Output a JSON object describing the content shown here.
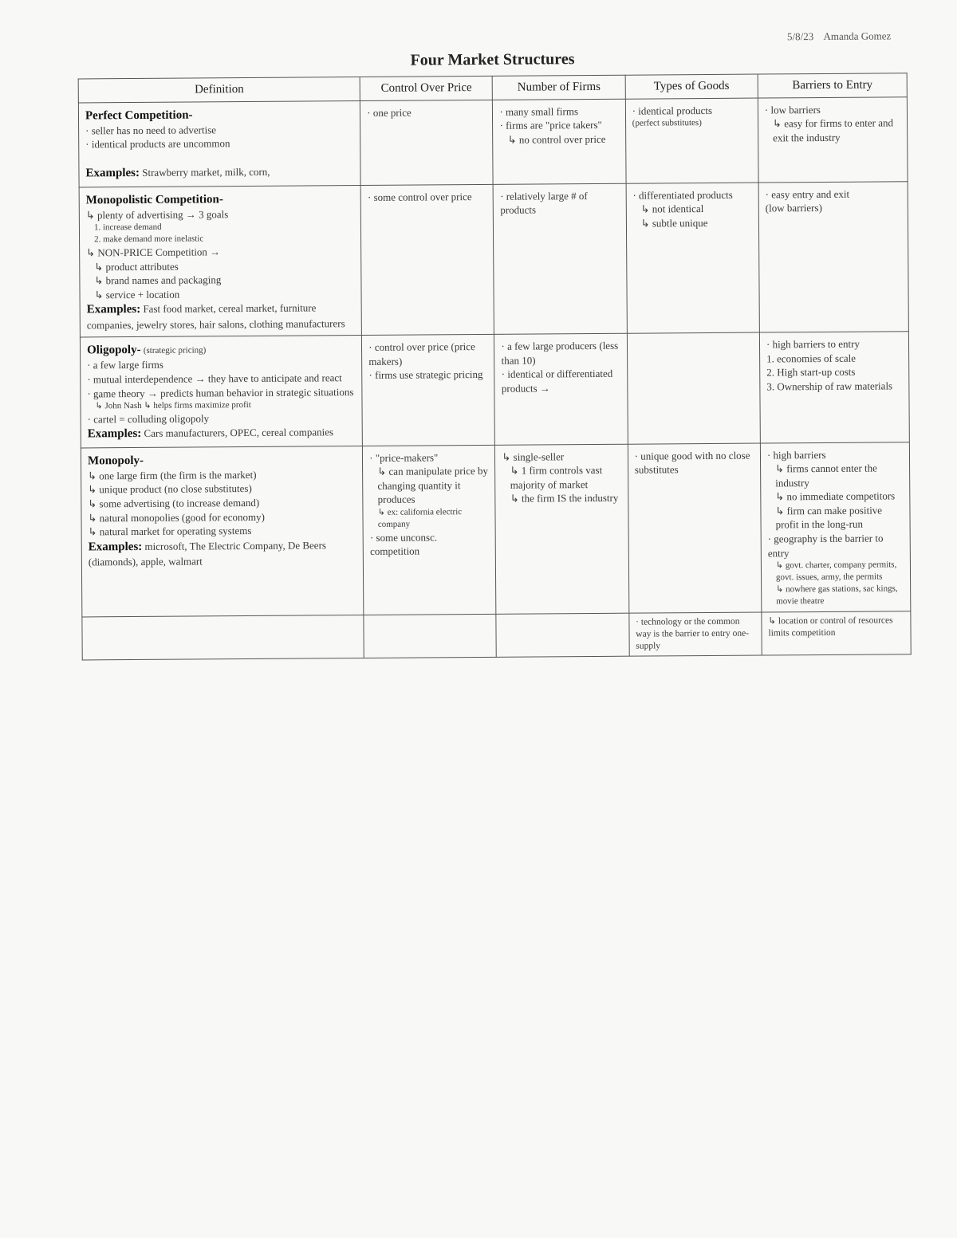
{
  "header": {
    "date": "5/8/23",
    "student": "Amanda Gomez"
  },
  "title": "Four Market Structures",
  "columns": [
    "Definition",
    "Control Over Price",
    "Number of Firms",
    "Types of Goods",
    "Barriers to Entry"
  ],
  "pc": {
    "label": "Perfect Competition-",
    "def1": "· seller has no need to advertise",
    "def2": "· identical products are uncommon",
    "ex_label": "Examples:",
    "ex": " Strawberry market, milk, corn,",
    "price": "· one price",
    "firms1": "· many small firms",
    "firms2": "· firms are \"price takers\"",
    "firms3": "↳ no control over price",
    "goods1": "· identical products",
    "goods2": "(perfect substitutes)",
    "barr1": "· low barriers",
    "barr2": "↳ easy for firms to enter and exit the industry"
  },
  "mc": {
    "label": "Monopolistic Competition-",
    "d1": "↳ plenty of advertising → 3 goals",
    "d1a": "1. increase demand",
    "d1b": "2. make demand more inelastic",
    "d2": "↳ NON-PRICE Competition →",
    "d2a": "↳ product attributes",
    "d2b": "↳ brand names and packaging",
    "d2c": "↳ service + location",
    "ex_label": "Examples:",
    "ex": " Fast food market, cereal market, furniture companies, jewelry stores, hair salons, clothing manufacturers",
    "price": "· some control over price",
    "firms1": "· relatively large # of products",
    "goods1": "· differentiated products",
    "goods2": "↳ not identical",
    "goods3": "↳ subtle unique",
    "barr1": "· easy entry and exit",
    "barr2": "(low barriers)"
  },
  "olig": {
    "label": "Oligopoly-",
    "d0": " (strategic pricing)",
    "d1": "· a few large firms",
    "d2": "· mutual interdependence → they have to anticipate and react",
    "d3": "· game theory → predicts human behavior in strategic situations",
    "d3a": "↳ John Nash          ↳ helps firms maximize profit",
    "d4": "· cartel = colluding oligopoly",
    "ex_label": "Examples:",
    "ex": " Cars manufacturers, OPEC, cereal companies",
    "price1": "· control over price (price makers)",
    "price2": "· firms use strategic pricing",
    "firms1": "· a few large producers (less than 10)",
    "firms2": "· identical or differentiated products →",
    "barr1": "· high barriers to entry",
    "barr2": "1. economies of scale",
    "barr3": "2. High start-up costs",
    "barr4": "3. Ownership of raw materials"
  },
  "mono": {
    "label": "Monopoly-",
    "d1": "↳ one large firm (the firm is the market)",
    "d2": "↳ unique product (no close substitutes)",
    "d3": "↳ some advertising (to increase demand)",
    "d4": "↳ natural monopolies (good for economy)",
    "d5": "↳ natural market for operating systems",
    "ex_label": "Examples:",
    "ex": " microsoft, The Electric Company, De Beers (diamonds), apple, walmart",
    "price1": "· \"price-makers\"",
    "price2": "↳ can manipulate price by changing quantity it produces",
    "price3": "↳ ex: california electric company",
    "price4": "· some unconsc. competition",
    "firms1": "↳ single-seller",
    "firms2": "↳ 1 firm controls vast majority of market",
    "firms3": "↳ the firm IS the industry",
    "goods1": "· unique good with no close substitutes",
    "barr1": "· high barriers",
    "barr2": "↳ firms cannot enter the industry",
    "barr3": "↳ no immediate competitors",
    "barr4": "↳ firm can make positive profit in the long-run",
    "barr5": "· geography is the barrier to entry",
    "barr5a": "↳ govt. charter, company permits, govt. issues, army, the permits",
    "barr6": "↳ nowhere gas stations, sac kings, movie theatre"
  },
  "footer": {
    "goods": "· technology or the common way is the barrier to entry   one-supply",
    "barr": "↳ location or control of resources limits competition"
  }
}
